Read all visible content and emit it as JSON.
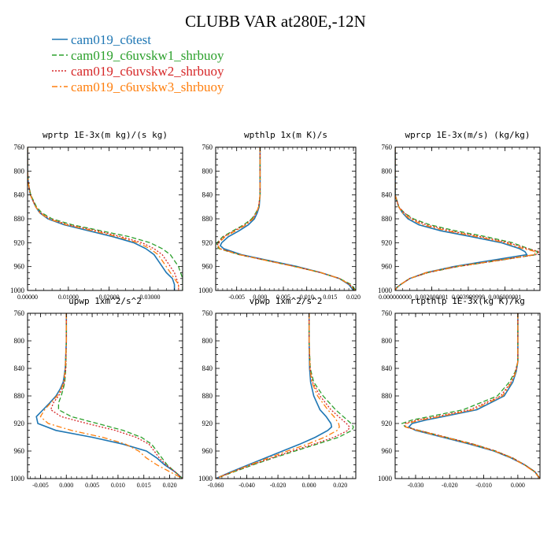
{
  "figure": {
    "title": "CLUBB VAR at280E,-12N",
    "legend": [
      {
        "name": "cam019_c6test",
        "color": "#1f77b4",
        "dash": "solid"
      },
      {
        "name": "cam019_c6uvskw1_shrbuoy",
        "color": "#2ca02c",
        "dash": "dash"
      },
      {
        "name": "cam019_c6uvskw2_shrbuoy",
        "color": "#d62728",
        "dash": "dot"
      },
      {
        "name": "cam019_c6uvskw3_shrbuoy",
        "color": "#ff7f0e",
        "dash": "dashdot"
      }
    ],
    "legend_placement": "top-left"
  },
  "chart_data": [
    {
      "type": "line",
      "title": "wprtp  1E-3x(m kg)/(s kg)",
      "xlim": [
        0.0,
        0.038
      ],
      "ylim": [
        760,
        1000
      ],
      "y_inverted": true,
      "xticks": [
        0.0,
        0.01,
        0.02,
        0.03
      ],
      "xticklabels": [
        "0.00000",
        "0.01000",
        "0.02000",
        "0.03000"
      ],
      "yticks": [
        760,
        800,
        840,
        880,
        920,
        960,
        1000
      ],
      "y": [
        760,
        800,
        820,
        840,
        860,
        870,
        880,
        890,
        900,
        910,
        920,
        930,
        940,
        950,
        960,
        970,
        980,
        990,
        1000
      ],
      "series": [
        {
          "name": "cam019_c6test",
          "color": "#1f77b4",
          "x": [
            0,
            0,
            0.0002,
            0.0007,
            0.002,
            0.003,
            0.005,
            0.009,
            0.015,
            0.021,
            0.026,
            0.029,
            0.031,
            0.032,
            0.033,
            0.034,
            0.0355,
            0.036,
            0.036
          ]
        },
        {
          "name": "cam019_c6uvskw1_shrbuoy",
          "color": "#2ca02c",
          "x": [
            0,
            0,
            0.0002,
            0.0008,
            0.0022,
            0.0035,
            0.006,
            0.011,
            0.018,
            0.025,
            0.03,
            0.033,
            0.035,
            0.036,
            0.037,
            0.0375,
            0.038,
            0.038,
            0.038
          ]
        },
        {
          "name": "cam019_c6uvskw2_shrbuoy",
          "color": "#d62728",
          "x": [
            0,
            0,
            0.0002,
            0.0007,
            0.002,
            0.0032,
            0.0055,
            0.01,
            0.017,
            0.023,
            0.028,
            0.031,
            0.033,
            0.034,
            0.035,
            0.036,
            0.0365,
            0.037,
            0.037
          ]
        },
        {
          "name": "cam019_c6uvskw3_shrbuoy",
          "color": "#ff7f0e",
          "x": [
            0,
            0,
            0.0002,
            0.0007,
            0.002,
            0.003,
            0.0052,
            0.0095,
            0.016,
            0.022,
            0.027,
            0.03,
            0.032,
            0.033,
            0.034,
            0.035,
            0.036,
            0.037,
            0.037
          ]
        }
      ]
    },
    {
      "type": "line",
      "title": "wpthlp  1x(m K)/s",
      "xlim": [
        -0.0095,
        0.0205
      ],
      "ylim": [
        760,
        1000
      ],
      "y_inverted": true,
      "xticks": [
        -0.005,
        0.0,
        0.005,
        0.01,
        0.015,
        0.02
      ],
      "xticklabels": [
        "-0.005",
        "0.000",
        "0.005",
        "0.010",
        "0.015",
        "0.020"
      ],
      "yticks": [
        760,
        800,
        840,
        880,
        920,
        960,
        1000
      ],
      "y": [
        760,
        800,
        840,
        860,
        870,
        880,
        890,
        900,
        910,
        920,
        925,
        930,
        940,
        950,
        960,
        970,
        980,
        990,
        1000
      ],
      "series": [
        {
          "name": "cam019_c6test",
          "color": "#1f77b4",
          "x": [
            0,
            0,
            0,
            -0.0002,
            -0.0006,
            -0.0012,
            -0.0025,
            -0.0045,
            -0.0068,
            -0.0082,
            -0.0085,
            -0.0078,
            -0.004,
            0.002,
            0.008,
            0.013,
            0.017,
            0.019,
            0.02
          ]
        },
        {
          "name": "cam019_c6uvskw1_shrbuoy",
          "color": "#2ca02c",
          "x": [
            0,
            0,
            0,
            -0.0003,
            -0.0009,
            -0.0018,
            -0.0035,
            -0.0058,
            -0.008,
            -0.0092,
            -0.0093,
            -0.0088,
            -0.0045,
            0.0015,
            0.0075,
            0.013,
            0.017,
            0.0195,
            0.0205
          ]
        },
        {
          "name": "cam019_c6uvskw2_shrbuoy",
          "color": "#d62728",
          "x": [
            0,
            0,
            0,
            -0.0003,
            -0.0008,
            -0.0016,
            -0.0032,
            -0.0055,
            -0.0078,
            -0.009,
            -0.0091,
            -0.0086,
            -0.0044,
            0.0015,
            0.0075,
            0.013,
            0.017,
            0.0192,
            0.0203
          ]
        },
        {
          "name": "cam019_c6uvskw3_shrbuoy",
          "color": "#ff7f0e",
          "x": [
            0,
            0,
            0,
            -0.0003,
            -0.0008,
            -0.0015,
            -0.003,
            -0.0052,
            -0.0075,
            -0.0088,
            -0.009,
            -0.0086,
            -0.0044,
            0.0015,
            0.0075,
            0.013,
            0.017,
            0.0192,
            0.0203
          ]
        }
      ]
    },
    {
      "type": "line",
      "title": "wprcp  1E-3x(m/s) (kg/kg)",
      "xlim": [
        0.0,
        0.00792
      ],
      "ylim": [
        760,
        1000
      ],
      "y_inverted": true,
      "xticks": [
        0.0,
        0.002,
        0.004,
        0.006
      ],
      "xticklabels": [
        "0.000000000",
        "0.002000001",
        "0.003999999",
        "0.006000001"
      ],
      "yticks": [
        760,
        800,
        840,
        880,
        920,
        960,
        1000
      ],
      "y": [
        760,
        800,
        840,
        860,
        870,
        880,
        890,
        900,
        910,
        920,
        930,
        935,
        940,
        950,
        960,
        970,
        980,
        990,
        995,
        1000
      ],
      "series": [
        {
          "name": "cam019_c6test",
          "color": "#1f77b4",
          "x": [
            0,
            0,
            0,
            0.0002,
            0.0004,
            0.0007,
            0.0013,
            0.0025,
            0.0042,
            0.0058,
            0.0068,
            0.0071,
            0.0072,
            0.0052,
            0.0032,
            0.0017,
            0.0008,
            0.0003,
            0.0001,
            0
          ]
        },
        {
          "name": "cam019_c6uvskw1_shrbuoy",
          "color": "#2ca02c",
          "x": [
            0,
            0,
            0,
            0.0002,
            0.0005,
            0.001,
            0.0019,
            0.0033,
            0.005,
            0.0064,
            0.0073,
            0.0078,
            0.0077,
            0.0056,
            0.0034,
            0.0018,
            0.0008,
            0.0003,
            0.0001,
            0
          ]
        },
        {
          "name": "cam019_c6uvskw2_shrbuoy",
          "color": "#d62728",
          "x": [
            0,
            0,
            0,
            0.0002,
            0.0005,
            0.0009,
            0.0017,
            0.003,
            0.0047,
            0.0062,
            0.0072,
            0.0079,
            0.0077,
            0.0056,
            0.0034,
            0.0018,
            0.0008,
            0.0003,
            0.0001,
            0
          ]
        },
        {
          "name": "cam019_c6uvskw3_shrbuoy",
          "color": "#ff7f0e",
          "x": [
            0,
            0,
            0,
            0.0002,
            0.0004,
            0.0008,
            0.0015,
            0.0028,
            0.0045,
            0.006,
            0.007,
            0.0077,
            0.0076,
            0.0055,
            0.0033,
            0.0017,
            0.0008,
            0.0003,
            0.0001,
            0
          ]
        }
      ]
    },
    {
      "type": "line",
      "title": "upwp  1xm^2/s^2",
      "xlim": [
        -0.0075,
        0.0225
      ],
      "ylim": [
        760,
        1000
      ],
      "y_inverted": true,
      "xticks": [
        -0.005,
        0.0,
        0.005,
        0.01,
        0.015,
        0.02
      ],
      "xticklabels": [
        "-0.005",
        "0.000",
        "0.005",
        "0.010",
        "0.015",
        "0.020"
      ],
      "yticks": [
        760,
        800,
        840,
        880,
        920,
        960,
        1000
      ],
      "y": [
        760,
        800,
        840,
        860,
        870,
        880,
        890,
        900,
        910,
        920,
        930,
        940,
        950,
        960,
        970,
        980,
        990,
        1000
      ],
      "series": [
        {
          "name": "cam019_c6test",
          "color": "#1f77b4",
          "x": [
            0,
            0,
            -0.0002,
            -0.0006,
            -0.0012,
            -0.002,
            -0.0032,
            -0.0045,
            -0.0058,
            -0.0055,
            -0.002,
            0.005,
            0.011,
            0.0155,
            0.0175,
            0.019,
            0.021,
            0.0225
          ]
        },
        {
          "name": "cam019_c6uvskw1_shrbuoy",
          "color": "#2ca02c",
          "x": [
            0,
            0,
            -0.0001,
            -0.0003,
            -0.0006,
            -0.001,
            -0.0015,
            -0.0015,
            0.001,
            0.006,
            0.011,
            0.0145,
            0.0165,
            0.0175,
            0.0185,
            0.0195,
            0.021,
            0.0225
          ]
        },
        {
          "name": "cam019_c6uvskw2_shrbuoy",
          "color": "#d62728",
          "x": [
            0,
            0,
            -0.0001,
            -0.0004,
            -0.0008,
            -0.0015,
            -0.0025,
            -0.003,
            -0.001,
            0.004,
            0.0095,
            0.0135,
            0.016,
            0.017,
            0.018,
            0.0193,
            0.021,
            0.0225
          ]
        },
        {
          "name": "cam019_c6uvskw3_shrbuoy",
          "color": "#ff7f0e",
          "x": [
            0,
            0,
            -0.0002,
            -0.0005,
            -0.001,
            -0.0018,
            -0.003,
            -0.0042,
            -0.005,
            -0.0035,
            0.001,
            0.007,
            0.0115,
            0.014,
            0.0155,
            0.0175,
            0.02,
            0.0225
          ]
        }
      ]
    },
    {
      "type": "line",
      "title": "vpwp  1xm^2/s^2",
      "xlim": [
        -0.06,
        0.03
      ],
      "ylim": [
        760,
        1000
      ],
      "y_inverted": true,
      "xticks": [
        -0.06,
        -0.04,
        -0.02,
        0.0,
        0.02
      ],
      "xticklabels": [
        "-0.060",
        "-0.040",
        "-0.020",
        "0.000",
        "0.020"
      ],
      "yticks": [
        760,
        800,
        840,
        880,
        920,
        960,
        1000
      ],
      "y": [
        760,
        800,
        840,
        860,
        880,
        900,
        910,
        920,
        925,
        930,
        940,
        950,
        960,
        970,
        980,
        990,
        1000
      ],
      "series": [
        {
          "name": "cam019_c6test",
          "color": "#1f77b4",
          "x": [
            0,
            0,
            0.0003,
            0.001,
            0.003,
            0.007,
            0.011,
            0.014,
            0.0145,
            0.012,
            0.004,
            -0.006,
            -0.017,
            -0.028,
            -0.039,
            -0.05,
            -0.06
          ]
        },
        {
          "name": "cam019_c6uvskw1_shrbuoy",
          "color": "#2ca02c",
          "x": [
            0,
            0,
            0.0008,
            0.003,
            0.009,
            0.017,
            0.022,
            0.027,
            0.0285,
            0.0275,
            0.019,
            0.005,
            -0.009,
            -0.023,
            -0.036,
            -0.048,
            -0.06
          ]
        },
        {
          "name": "cam019_c6uvskw2_shrbuoy",
          "color": "#d62728",
          "x": [
            0,
            0,
            0.0006,
            0.0022,
            0.007,
            0.014,
            0.019,
            0.024,
            0.026,
            0.025,
            0.016,
            0.003,
            -0.011,
            -0.024,
            -0.037,
            -0.049,
            -0.06
          ]
        },
        {
          "name": "cam019_c6uvskw3_shrbuoy",
          "color": "#ff7f0e",
          "x": [
            0,
            0,
            0.0005,
            0.0018,
            0.0055,
            0.012,
            0.016,
            0.019,
            0.0195,
            0.018,
            0.01,
            -0.001,
            -0.014,
            -0.026,
            -0.038,
            -0.049,
            -0.06
          ]
        }
      ]
    },
    {
      "type": "line",
      "title": "rtpthlp  1E-3x(kg K)/kg",
      "xlim": [
        -0.036,
        0.0065
      ],
      "ylim": [
        760,
        1000
      ],
      "y_inverted": true,
      "xticks": [
        -0.03,
        -0.02,
        -0.01,
        0.0
      ],
      "xticklabels": [
        "-0.030",
        "-0.020",
        "-0.010",
        "0.000"
      ],
      "yticks": [
        760,
        800,
        840,
        880,
        920,
        960,
        1000
      ],
      "y": [
        760,
        800,
        830,
        845,
        860,
        880,
        900,
        910,
        915,
        920,
        925,
        930,
        940,
        950,
        960,
        970,
        980,
        990,
        1000
      ],
      "series": [
        {
          "name": "cam019_c6test",
          "color": "#1f77b4",
          "x": [
            0,
            0,
            0,
            -0.0005,
            -0.0015,
            -0.004,
            -0.012,
            -0.022,
            -0.027,
            -0.031,
            -0.032,
            -0.03,
            -0.022,
            -0.014,
            -0.007,
            -0.002,
            0.002,
            0.005,
            0.0065
          ]
        },
        {
          "name": "cam019_c6uvskw1_shrbuoy",
          "color": "#2ca02c",
          "x": [
            0,
            0,
            0,
            -0.0008,
            -0.0025,
            -0.006,
            -0.016,
            -0.026,
            -0.031,
            -0.034,
            -0.033,
            -0.029,
            -0.021,
            -0.013,
            -0.0065,
            -0.0015,
            0.002,
            0.005,
            0.0065
          ]
        },
        {
          "name": "cam019_c6uvskw2_shrbuoy",
          "color": "#d62728",
          "x": [
            0,
            0,
            0,
            -0.0007,
            -0.002,
            -0.005,
            -0.014,
            -0.024,
            -0.0295,
            -0.033,
            -0.033,
            -0.029,
            -0.021,
            -0.013,
            -0.0065,
            -0.0015,
            0.002,
            0.005,
            0.0065
          ]
        },
        {
          "name": "cam019_c6uvskw3_shrbuoy",
          "color": "#ff7f0e",
          "x": [
            0,
            0,
            0,
            -0.0006,
            -0.0018,
            -0.0045,
            -0.013,
            -0.023,
            -0.0285,
            -0.0325,
            -0.033,
            -0.0295,
            -0.0215,
            -0.0135,
            -0.0068,
            -0.0018,
            0.0018,
            0.0048,
            0.0065
          ]
        }
      ]
    }
  ]
}
